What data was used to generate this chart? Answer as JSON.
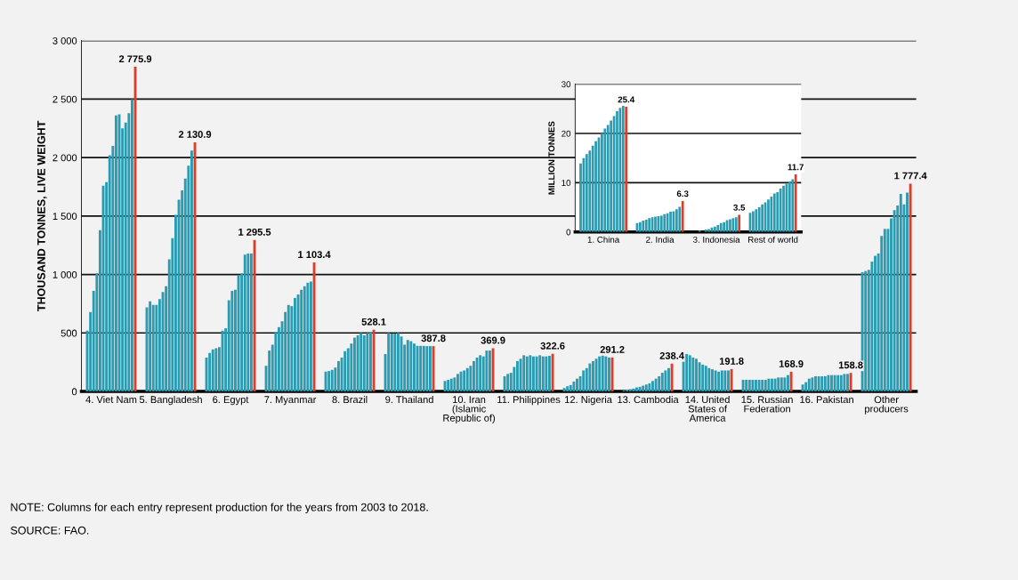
{
  "chart_data": [
    {
      "type": "bar",
      "ylabel": "THOUSAND TONNES, LIVE WEIGHT",
      "categories": [
        "4. Viet Nam",
        "5. Bangladesh",
        "6. Egypt",
        "7. Myanmar",
        "8. Brazil",
        "9. Thailand",
        "10. Iran\n(Islamic\nRepublic of)",
        "11. Philippines",
        "12. Nigeria",
        "13. Cambodia",
        "14. United\nStates of\nAmerica",
        "15. Russian\nFederation",
        "16. Pakistan",
        "Other\nproducers"
      ],
      "series": [
        {
          "color": "#2a9bb0",
          "values": [
            520,
            720,
            290,
            220,
            170,
            320,
            90,
            130,
            30,
            10,
            330,
            100,
            60,
            1020
          ]
        },
        {
          "color": "#2a9bb0",
          "values": [
            680,
            770,
            330,
            350,
            175,
            500,
            100,
            150,
            45,
            15,
            320,
            100,
            80,
            1030
          ]
        },
        {
          "color": "#2a9bb0",
          "values": [
            860,
            740,
            360,
            400,
            185,
            495,
            110,
            160,
            55,
            20,
            310,
            100,
            110,
            1040
          ]
        },
        {
          "color": "#2a9bb0",
          "values": [
            1010,
            740,
            370,
            510,
            205,
            495,
            120,
            210,
            85,
            25,
            290,
            100,
            120,
            1110
          ]
        },
        {
          "color": "#2a9bb0",
          "values": [
            1380,
            790,
            380,
            550,
            260,
            500,
            150,
            260,
            110,
            35,
            280,
            100,
            130,
            1160
          ]
        },
        {
          "color": "#2a9bb0",
          "values": [
            1760,
            850,
            520,
            600,
            290,
            470,
            170,
            280,
            130,
            40,
            250,
            100,
            130,
            1180
          ]
        },
        {
          "color": "#2a9bb0",
          "values": [
            1790,
            900,
            540,
            680,
            345,
            400,
            180,
            310,
            180,
            50,
            230,
            100,
            130,
            1330
          ]
        },
        {
          "color": "#2a9bb0",
          "values": [
            2020,
            1130,
            780,
            740,
            370,
            440,
            200,
            300,
            200,
            60,
            220,
            100,
            130,
            1390
          ]
        },
        {
          "color": "#2a9bb0",
          "values": [
            2100,
            1310,
            860,
            730,
            410,
            430,
            220,
            310,
            240,
            70,
            200,
            110,
            140,
            1390
          ]
        },
        {
          "color": "#2a9bb0",
          "values": [
            2360,
            1510,
            870,
            800,
            460,
            410,
            260,
            300,
            260,
            90,
            190,
            110,
            140,
            1480
          ]
        },
        {
          "color": "#2a9bb0",
          "values": [
            2370,
            1640,
            990,
            830,
            480,
            390,
            290,
            300,
            280,
            110,
            180,
            110,
            140,
            1550
          ]
        },
        {
          "color": "#2a9bb0",
          "values": [
            2250,
            1720,
            1010,
            870,
            500,
            390,
            310,
            310,
            300,
            130,
            170,
            120,
            140,
            1590
          ]
        },
        {
          "color": "#2a9bb0",
          "values": [
            2300,
            1820,
            1170,
            900,
            480,
            390,
            300,
            300,
            310,
            160,
            180,
            120,
            140,
            1690
          ]
        },
        {
          "color": "#2a9bb0",
          "values": [
            2380,
            1930,
            1180,
            930,
            500,
            388,
            350,
            300,
            300,
            180,
            180,
            120,
            150,
            1600
          ]
        },
        {
          "color": "#2a9bb0",
          "values": [
            2500,
            2060,
            1180,
            940,
            510,
            388,
            350,
            305,
            290,
            200,
            180,
            140,
            150,
            1700
          ]
        },
        {
          "color": "#d9402b",
          "values": [
            2775.9,
            2130.9,
            1295.5,
            1103.4,
            528.1,
            387.8,
            369.9,
            322.6,
            291.2,
            238.4,
            191.8,
            168.9,
            158.8,
            1777.4
          ],
          "value_labels": [
            "2 775.9",
            "2 130.9",
            "1 295.5",
            "1 103.4",
            "528.1",
            "387.8",
            "369.9",
            "322.6",
            "291.2",
            "238.4",
            "191.8",
            "168.9",
            "158.8",
            "1 777.4"
          ]
        }
      ],
      "ylim": [
        0,
        3000
      ],
      "yticks": [
        0,
        500,
        {
          "value": 1000,
          "label": "1 000"
        },
        {
          "value": 1500,
          "label": "1 500"
        },
        {
          "value": 2000,
          "label": "2 000"
        },
        {
          "value": 2500,
          "label": "2 500"
        },
        {
          "value": 3000,
          "label": "3 000"
        }
      ],
      "grid": "y",
      "annotations": [
        "NOTE: Columns for each entry represent production for the years from 2003 to 2018.",
        "SOURCE: FAO."
      ]
    },
    {
      "type": "bar",
      "ylabel": "MILLION TONNES",
      "categories": [
        "1. China",
        "2. India",
        "3. Indonesia",
        "Rest of world"
      ],
      "series": [
        {
          "color": "#2a9bb0",
          "values": [
            13.9,
            1.8,
            null,
            3.9
          ]
        },
        {
          "color": "#2a9bb0",
          "values": [
            15.0,
            2.0,
            null,
            4.2
          ]
        },
        {
          "color": "#2a9bb0",
          "values": [
            15.8,
            2.3,
            0.3,
            4.6
          ]
        },
        {
          "color": "#2a9bb0",
          "values": [
            16.5,
            2.5,
            null,
            5.0
          ]
        },
        {
          "color": "#2a9bb0",
          "values": [
            17.5,
            2.8,
            0.5,
            5.6
          ]
        },
        {
          "color": "#2a9bb0",
          "values": [
            18.4,
            3.0,
            0.6,
            6.0
          ]
        },
        {
          "color": "#2a9bb0",
          "values": [
            19.2,
            3.1,
            0.9,
            6.6
          ]
        },
        {
          "color": "#2a9bb0",
          "values": [
            20.0,
            3.2,
            1.1,
            7.2
          ]
        },
        {
          "color": "#2a9bb0",
          "values": [
            21.0,
            3.3,
            1.4,
            7.8
          ]
        },
        {
          "color": "#2a9bb0",
          "values": [
            21.7,
            3.6,
            1.8,
            8.1
          ]
        },
        {
          "color": "#2a9bb0",
          "values": [
            22.6,
            3.8,
            2.0,
            8.8
          ]
        },
        {
          "color": "#2a9bb0",
          "values": [
            23.5,
            4.1,
            2.4,
            9.4
          ]
        },
        {
          "color": "#2a9bb0",
          "values": [
            24.5,
            4.2,
            2.6,
            9.8
          ]
        },
        {
          "color": "#2a9bb0",
          "values": [
            25.2,
            4.6,
            2.8,
            10.2
          ]
        },
        {
          "color": "#2a9bb0",
          "values": [
            25.6,
            5.1,
            3.0,
            10.7
          ]
        },
        {
          "color": "#d9402b",
          "values": [
            25.4,
            6.3,
            3.5,
            11.7
          ],
          "value_labels": [
            "25.4",
            "6.3",
            "3.5",
            "11.7"
          ]
        }
      ],
      "ylim": [
        0,
        30
      ],
      "yticks": [
        0,
        10,
        20,
        30
      ],
      "grid": "y"
    }
  ]
}
